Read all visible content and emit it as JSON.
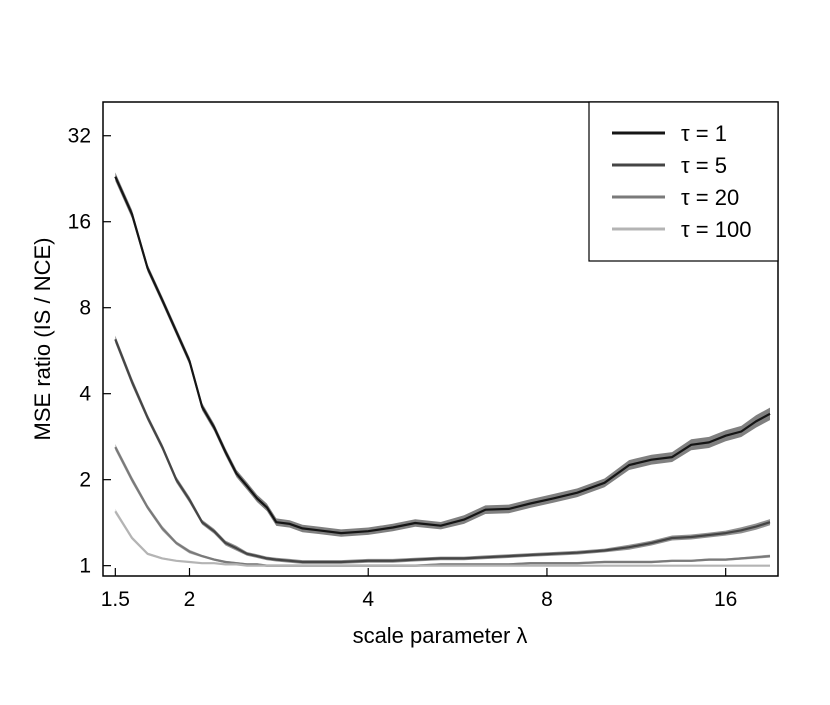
{
  "chart_data": {
    "type": "line",
    "xlabel": "scale parameter λ",
    "ylabel": "MSE ratio (IS / NCE)",
    "xscale": "log",
    "yscale": "log",
    "xlim": [
      1.43,
      19.6
    ],
    "ylim": [
      0.92,
      42
    ],
    "xticks": [
      1.5,
      2,
      4,
      8,
      16
    ],
    "xtick_labels": [
      "1.5",
      "2",
      "4",
      "8",
      "16"
    ],
    "yticks": [
      1,
      2,
      4,
      8,
      16,
      32
    ],
    "ytick_labels": [
      "1",
      "2",
      "4",
      "8",
      "16",
      "32"
    ],
    "grid": false,
    "legend_position": "top-right",
    "series": [
      {
        "name": "τ = 1",
        "color": "#151515",
        "band_color": "#6a6a6a",
        "x": [
          1.5,
          1.6,
          1.7,
          1.8,
          1.9,
          2.0,
          2.1,
          2.2,
          2.3,
          2.4,
          2.5,
          2.6,
          2.7,
          2.8,
          2.95,
          3.1,
          3.3,
          3.6,
          4.0,
          4.4,
          4.8,
          5.3,
          5.8,
          6.3,
          6.9,
          7.5,
          8.2,
          9.0,
          10.0,
          11.0,
          12.0,
          13.0,
          14.0,
          15.0,
          16.0,
          17.0,
          18.0,
          19.0
        ],
        "y": [
          23.0,
          17.0,
          11.0,
          8.5,
          6.6,
          5.2,
          3.6,
          3.05,
          2.5,
          2.1,
          1.9,
          1.72,
          1.6,
          1.42,
          1.4,
          1.35,
          1.33,
          1.3,
          1.32,
          1.36,
          1.41,
          1.38,
          1.45,
          1.57,
          1.58,
          1.65,
          1.72,
          1.8,
          1.95,
          2.25,
          2.35,
          2.4,
          2.65,
          2.7,
          2.85,
          2.95,
          3.2,
          3.4
        ],
        "band_halfwidth": [
          0.035,
          0.035,
          0.03,
          0.03,
          0.03,
          0.03,
          0.03,
          0.03,
          0.03,
          0.03,
          0.03,
          0.03,
          0.03,
          0.03,
          0.03,
          0.03,
          0.03,
          0.03,
          0.03,
          0.03,
          0.03,
          0.03,
          0.035,
          0.035,
          0.035,
          0.035,
          0.035,
          0.035,
          0.035,
          0.04,
          0.04,
          0.04,
          0.045,
          0.045,
          0.045,
          0.045,
          0.05,
          0.05
        ]
      },
      {
        "name": "τ = 5",
        "color": "#454545",
        "band_color": "#7e7e7e",
        "x": [
          1.5,
          1.6,
          1.7,
          1.8,
          1.9,
          2.0,
          2.1,
          2.2,
          2.3,
          2.4,
          2.5,
          2.6,
          2.7,
          2.8,
          2.95,
          3.1,
          3.3,
          3.6,
          4.0,
          4.4,
          4.8,
          5.3,
          5.8,
          6.3,
          6.9,
          7.5,
          8.2,
          9.0,
          10.0,
          11.0,
          12.0,
          13.0,
          14.0,
          15.0,
          16.0,
          17.0,
          18.0,
          19.0
        ],
        "y": [
          6.2,
          4.4,
          3.3,
          2.6,
          2.0,
          1.7,
          1.42,
          1.32,
          1.2,
          1.15,
          1.1,
          1.08,
          1.06,
          1.05,
          1.04,
          1.03,
          1.03,
          1.03,
          1.04,
          1.04,
          1.05,
          1.06,
          1.06,
          1.07,
          1.08,
          1.09,
          1.1,
          1.11,
          1.13,
          1.16,
          1.2,
          1.25,
          1.26,
          1.28,
          1.3,
          1.33,
          1.37,
          1.42
        ],
        "band_halfwidth": [
          0.03,
          0.03,
          0.025,
          0.025,
          0.025,
          0.025,
          0.02,
          0.02,
          0.02,
          0.02,
          0.015,
          0.015,
          0.015,
          0.015,
          0.015,
          0.015,
          0.015,
          0.015,
          0.015,
          0.015,
          0.015,
          0.015,
          0.015,
          0.015,
          0.015,
          0.015,
          0.015,
          0.015,
          0.015,
          0.02,
          0.02,
          0.02,
          0.02,
          0.02,
          0.02,
          0.025,
          0.025,
          0.025
        ]
      },
      {
        "name": "τ = 20",
        "color": "#7a7a7a",
        "band_color": "#a8a8a8",
        "x": [
          1.5,
          1.6,
          1.7,
          1.8,
          1.9,
          2.0,
          2.1,
          2.2,
          2.3,
          2.4,
          2.5,
          2.6,
          2.7,
          2.8,
          2.95,
          3.1,
          3.3,
          3.6,
          4.0,
          4.4,
          4.8,
          5.3,
          5.8,
          6.3,
          6.9,
          7.5,
          8.2,
          9.0,
          10.0,
          11.0,
          12.0,
          13.0,
          14.0,
          15.0,
          16.0,
          17.0,
          18.0,
          19.0
        ],
        "y": [
          2.6,
          2.0,
          1.6,
          1.35,
          1.2,
          1.12,
          1.08,
          1.05,
          1.03,
          1.02,
          1.01,
          1.01,
          1.0,
          1.0,
          1.0,
          1.0,
          1.0,
          1.0,
          1.0,
          1.0,
          1.0,
          1.01,
          1.01,
          1.01,
          1.01,
          1.02,
          1.02,
          1.02,
          1.03,
          1.03,
          1.03,
          1.04,
          1.04,
          1.05,
          1.05,
          1.06,
          1.07,
          1.08
        ],
        "band_halfwidth": [
          0.025,
          0.025,
          0.02,
          0.02,
          0.015,
          0.015,
          0.01,
          0.01,
          0.01,
          0.01,
          0.01,
          0.01,
          0.01,
          0.01,
          0.01,
          0.01,
          0.01,
          0.01,
          0.01,
          0.01,
          0.01,
          0.01,
          0.01,
          0.01,
          0.01,
          0.01,
          0.01,
          0.01,
          0.01,
          0.01,
          0.01,
          0.01,
          0.01,
          0.01,
          0.01,
          0.01,
          0.012,
          0.012
        ]
      },
      {
        "name": "τ = 100",
        "color": "#b4b4b4",
        "band_color": "#d4d4d4",
        "x": [
          1.5,
          1.6,
          1.7,
          1.8,
          1.9,
          2.0,
          2.1,
          2.2,
          2.3,
          2.4,
          2.5,
          2.6,
          2.7,
          2.8,
          2.95,
          3.1,
          3.3,
          3.6,
          4.0,
          4.4,
          4.8,
          5.3,
          5.8,
          6.3,
          6.9,
          7.5,
          8.2,
          9.0,
          10.0,
          11.0,
          12.0,
          13.0,
          14.0,
          15.0,
          16.0,
          17.0,
          18.0,
          19.0
        ],
        "y": [
          1.55,
          1.25,
          1.1,
          1.06,
          1.04,
          1.03,
          1.02,
          1.02,
          1.01,
          1.01,
          1.0,
          1.0,
          1.0,
          1.0,
          1.0,
          1.0,
          1.0,
          1.0,
          1.0,
          1.0,
          1.0,
          1.0,
          1.0,
          1.0,
          1.0,
          1.0,
          1.0,
          1.0,
          1.0,
          1.0,
          1.0,
          1.0,
          1.0,
          1.0,
          1.0,
          1.0,
          1.0,
          1.0
        ],
        "band_halfwidth": [
          0.02,
          0.015,
          0.01,
          0.008,
          0.006,
          0.006,
          0.005,
          0.005,
          0.005,
          0.005,
          0.005,
          0.005,
          0.005,
          0.005,
          0.005,
          0.005,
          0.005,
          0.005,
          0.005,
          0.005,
          0.005,
          0.005,
          0.005,
          0.005,
          0.005,
          0.005,
          0.005,
          0.005,
          0.005,
          0.005,
          0.005,
          0.005,
          0.005,
          0.005,
          0.005,
          0.005,
          0.005,
          0.005
        ]
      }
    ]
  }
}
